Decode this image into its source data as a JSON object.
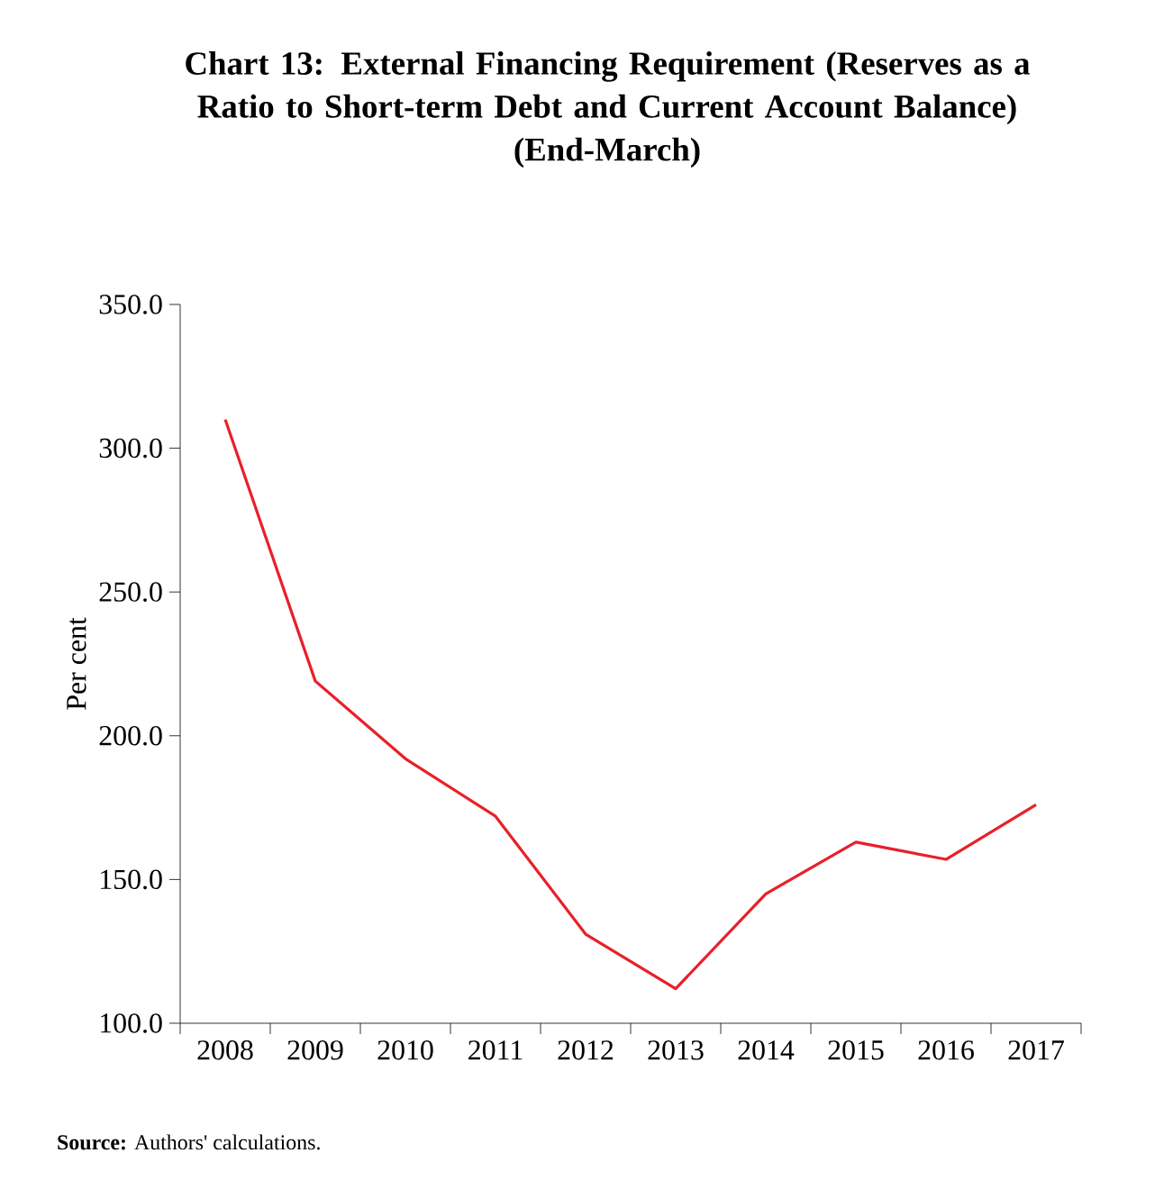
{
  "chart_data": {
    "type": "line",
    "title": "Chart 13: External Financing Requirement (Reserves as a Ratio to Short-term Debt and Current Account Balance)",
    "subtitle": "(End-March)",
    "ylabel": "Per cent",
    "categories": [
      "2008",
      "2009",
      "2010",
      "2011",
      "2012",
      "2013",
      "2014",
      "2015",
      "2016",
      "2017"
    ],
    "series": [
      {
        "color": "#e8202a",
        "values": [
          310,
          219,
          192,
          172,
          131,
          112,
          145,
          163,
          157,
          176
        ]
      }
    ],
    "ylim": [
      100,
      350
    ],
    "yticks": [
      {
        "value": 100,
        "label": "100.0"
      },
      {
        "value": 150,
        "label": "150.0"
      },
      {
        "value": 200,
        "label": "200.0"
      },
      {
        "value": 250,
        "label": "250.0"
      },
      {
        "value": 300,
        "label": "300.0"
      },
      {
        "value": 350,
        "label": "350.0"
      }
    ],
    "grid": false,
    "marker": "none",
    "line_style": "solid",
    "annotations": [
      "**Source:** Authors' calculations."
    ]
  }
}
